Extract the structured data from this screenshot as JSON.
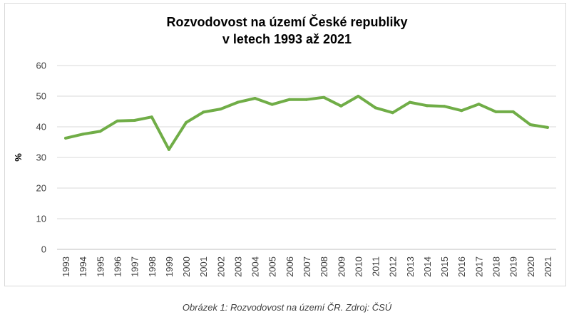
{
  "caption": "Obrázek 1: Rozvodovost na území ČR. Zdroj: ČSÚ",
  "chart_data": {
    "type": "line",
    "title_line1": "Rozvodovost na území České republiky",
    "title_line2": "v letech 1993 až 2021",
    "xlabel": "",
    "ylabel": "%",
    "ylim": [
      0,
      60
    ],
    "yticks": [
      0,
      10,
      20,
      30,
      40,
      50,
      60
    ],
    "grid": true,
    "legend": "none",
    "line_color": "#70ad47",
    "categories": [
      "1993",
      "1994",
      "1995",
      "1996",
      "1997",
      "1998",
      "1999",
      "2000",
      "2001",
      "2002",
      "2003",
      "2004",
      "2005",
      "2006",
      "2007",
      "2008",
      "2009",
      "2010",
      "2011",
      "2012",
      "2013",
      "2014",
      "2015",
      "2016",
      "2017",
      "2018",
      "2019",
      "2020",
      "2021"
    ],
    "values": [
      36.3,
      37.6,
      38.5,
      41.9,
      42.1,
      43.2,
      32.6,
      41.4,
      44.8,
      45.8,
      48.0,
      49.3,
      47.3,
      48.9,
      48.9,
      49.6,
      46.8,
      50.0,
      46.2,
      44.6,
      48.0,
      46.9,
      46.7,
      45.3,
      47.4,
      44.9,
      44.9,
      40.7,
      39.8
    ]
  }
}
